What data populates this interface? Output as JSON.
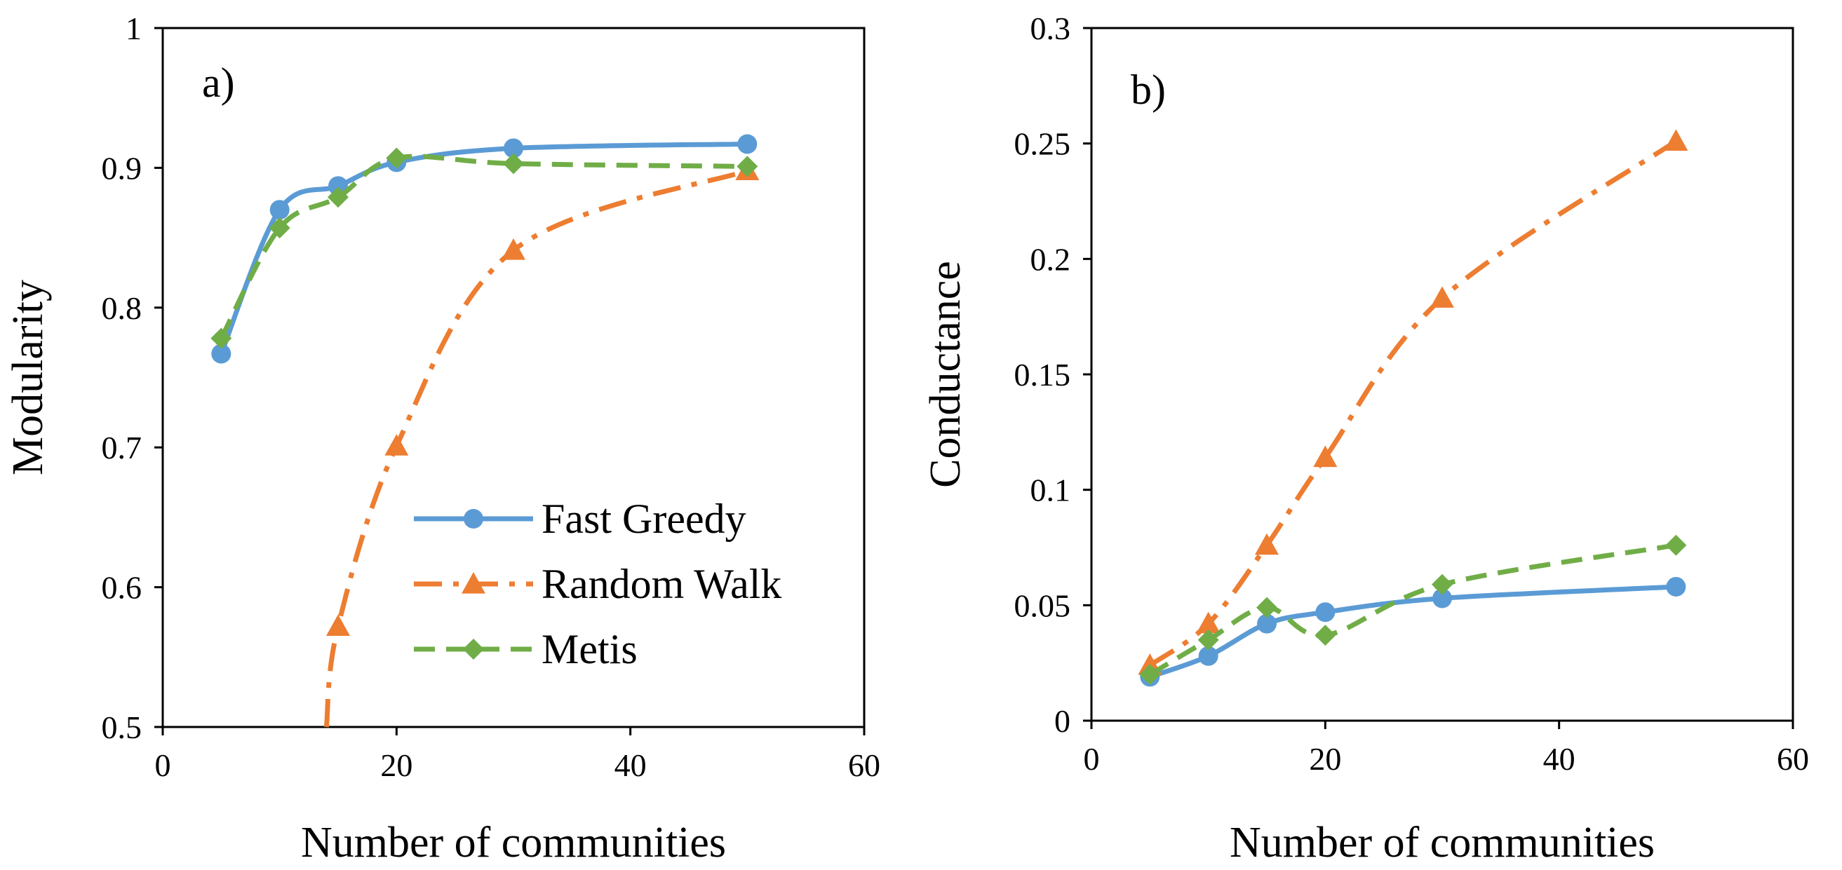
{
  "chart_data": [
    {
      "type": "line",
      "panel_label": "a)",
      "xlabel": "Number of communities",
      "ylabel": "Modularity",
      "xlim": [
        0,
        60
      ],
      "ylim": [
        0.5,
        1
      ],
      "xticks": [
        0,
        20,
        40,
        60
      ],
      "yticks": [
        0.5,
        0.6,
        0.7,
        0.8,
        0.9,
        1
      ],
      "xtick_labels": [
        "0",
        "20",
        "40",
        "60"
      ],
      "ytick_labels": [
        "0.5",
        "0.6",
        "0.7",
        "0.8",
        "0.9",
        "1"
      ],
      "grid": false,
      "legend": {
        "position": "bottom-right",
        "entries": [
          "Fast Greedy",
          "Random Walk",
          "Metis"
        ]
      },
      "series": [
        {
          "name": "Fast Greedy",
          "color": "#5b9bd5",
          "marker": "circle",
          "dash": "solid",
          "x": [
            5,
            10,
            15,
            20,
            30,
            50
          ],
          "y": [
            0.767,
            0.87,
            0.887,
            0.904,
            0.914,
            0.917
          ]
        },
        {
          "name": "Random Walk",
          "color": "#ed7d31",
          "marker": "triangle",
          "dash": "dashdot",
          "x": [
            15,
            20,
            30,
            50
          ],
          "y": [
            0.572,
            0.701,
            0.841,
            0.898
          ],
          "clip_start": [
            14,
            0.5
          ]
        },
        {
          "name": "Metis",
          "color": "#70ad47",
          "marker": "diamond",
          "dash": "dashed",
          "x": [
            5,
            10,
            15,
            20,
            30,
            50
          ],
          "y": [
            0.778,
            0.857,
            0.879,
            0.907,
            0.903,
            0.901
          ]
        }
      ]
    },
    {
      "type": "line",
      "panel_label": "b)",
      "xlabel": "Number of communities",
      "ylabel": "Conductance",
      "xlim": [
        0,
        60
      ],
      "ylim": [
        0,
        0.3
      ],
      "xticks": [
        0,
        20,
        40,
        60
      ],
      "yticks": [
        0,
        0.05,
        0.1,
        0.15,
        0.2,
        0.25,
        0.3
      ],
      "xtick_labels": [
        "0",
        "20",
        "40",
        "60"
      ],
      "ytick_labels": [
        "0",
        "0.05",
        "0.1",
        "0.15",
        "0.2",
        "0.25",
        "0.3"
      ],
      "grid": false,
      "series": [
        {
          "name": "Fast Greedy",
          "color": "#5b9bd5",
          "marker": "circle",
          "dash": "solid",
          "x": [
            5,
            10,
            15,
            20,
            30,
            50
          ],
          "y": [
            0.019,
            0.028,
            0.042,
            0.047,
            0.053,
            0.058
          ]
        },
        {
          "name": "Random Walk",
          "color": "#ed7d31",
          "marker": "triangle",
          "dash": "dashdot",
          "x": [
            5,
            10,
            15,
            20,
            30,
            50
          ],
          "y": [
            0.024,
            0.042,
            0.076,
            0.114,
            0.183,
            0.251
          ]
        },
        {
          "name": "Metis",
          "color": "#70ad47",
          "marker": "diamond",
          "dash": "dashed",
          "x": [
            5,
            10,
            15,
            20,
            30,
            50
          ],
          "y": [
            0.02,
            0.035,
            0.049,
            0.037,
            0.059,
            0.076
          ]
        }
      ]
    }
  ]
}
